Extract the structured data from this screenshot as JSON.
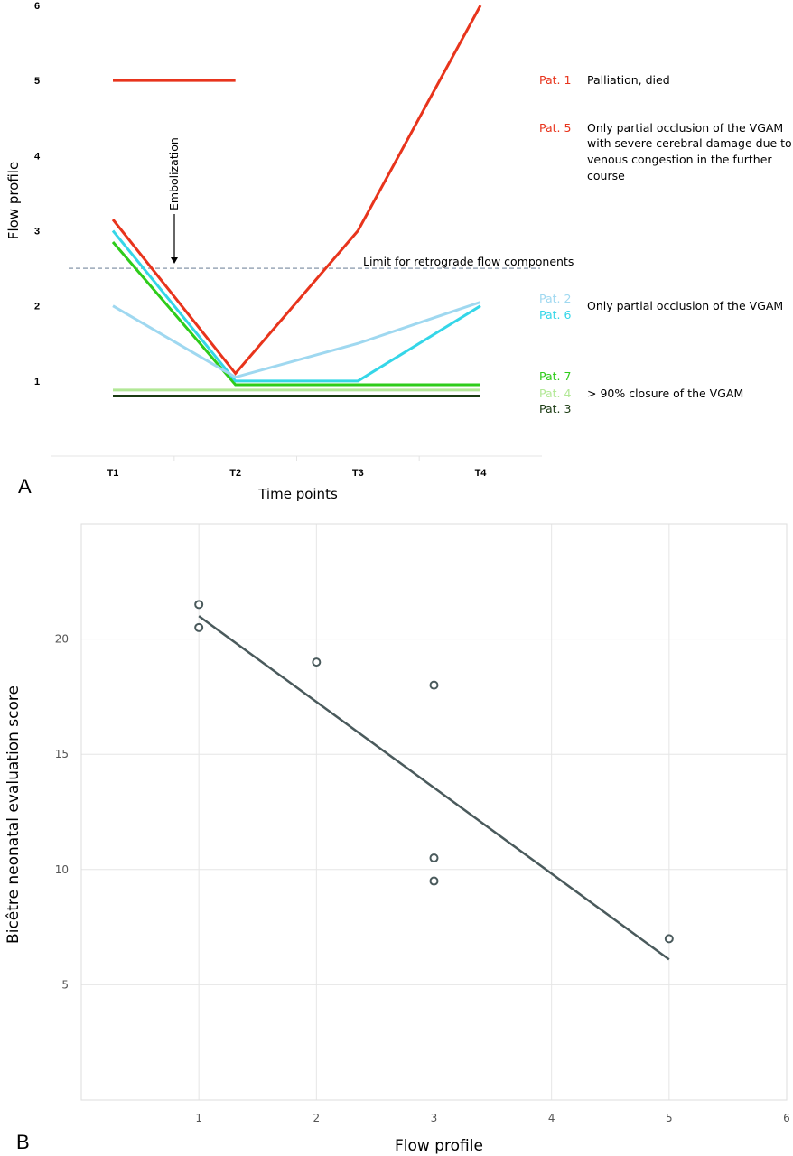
{
  "chart_data": [
    {
      "type": "line",
      "panel_label": "A",
      "xlabel": "Time points",
      "ylabel": "Flow profile",
      "categories": [
        "T1",
        "T2",
        "T3",
        "T4"
      ],
      "yticks": [
        "1",
        "2",
        "3",
        "4",
        "5",
        "6"
      ],
      "ylim": [
        0,
        6
      ],
      "series": [
        {
          "name": "Pat. 1",
          "color": "#e8341c",
          "values": [
            5,
            5,
            null,
            null
          ]
        },
        {
          "name": "Pat. 5",
          "color": "#e8341c",
          "values": [
            3.15,
            1.1,
            3.0,
            6.0
          ]
        },
        {
          "name": "Pat. 2",
          "color": "#9fd8f0",
          "values": [
            2.0,
            1.05,
            1.5,
            2.05
          ]
        },
        {
          "name": "Pat. 6",
          "color": "#35d6e8",
          "values": [
            3.0,
            1.0,
            1.0,
            2.0
          ]
        },
        {
          "name": "Pat. 7",
          "color": "#2ecc1a",
          "values": [
            2.85,
            0.95,
            0.95,
            0.95
          ]
        },
        {
          "name": "Pat. 4",
          "color": "#b2e896",
          "values": [
            0.88,
            0.88,
            0.88,
            0.88
          ]
        },
        {
          "name": "Pat. 3",
          "color": "#1a3a12",
          "values": [
            0.8,
            0.8,
            0.8,
            0.8
          ]
        }
      ],
      "reference_line": {
        "label": "Limit for retrograde flow components",
        "y": 2.5,
        "color": "#9aa8b8"
      },
      "annotation": {
        "label": "Embolization",
        "x_between": [
          "T1",
          "T2"
        ]
      },
      "legend_labels": {
        "pat1": "Pat. 1",
        "pat5": "Pat. 5",
        "pat2": "Pat. 2",
        "pat6": "Pat. 6",
        "pat7": "Pat. 7",
        "pat4": "Pat. 4",
        "pat3": "Pat. 3"
      },
      "descriptions": {
        "pat1": "Palliation, died",
        "pat5_lines": [
          "Only partial occlusion of the VGAM",
          "with severe cerebral damage due to",
          "venous congestion in the further",
          "course"
        ],
        "pat2_6": "Only partial occlusion of the VGAM",
        "pat7_4_3": "> 90% closure of the VGAM"
      }
    },
    {
      "type": "scatter",
      "panel_label": "B",
      "xlabel": "Flow profile",
      "ylabel": "Bicêtre neonatal evaluation score",
      "xlim": [
        0,
        6
      ],
      "ylim": [
        0,
        25
      ],
      "xticks": [
        "1",
        "2",
        "3",
        "4",
        "5",
        "6"
      ],
      "yticks": [
        "5",
        "10",
        "15",
        "20"
      ],
      "grid": true,
      "points": [
        {
          "x": 1,
          "y": 21.5
        },
        {
          "x": 1,
          "y": 20.5
        },
        {
          "x": 2,
          "y": 19
        },
        {
          "x": 3,
          "y": 18
        },
        {
          "x": 3,
          "y": 10.5
        },
        {
          "x": 3,
          "y": 9.5
        },
        {
          "x": 5,
          "y": 7
        }
      ],
      "trendline": {
        "x": [
          1,
          5
        ],
        "y": [
          21,
          6.1
        ],
        "color": "#4a5a5c"
      }
    }
  ]
}
